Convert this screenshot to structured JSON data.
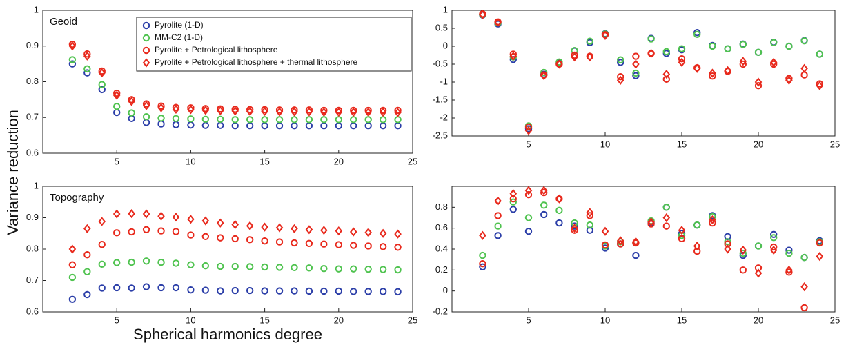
{
  "ylabel": "Variance reduction",
  "xlabel": "Spherical harmonics degree",
  "chart_data": [
    {
      "type": "scatter",
      "title": "Geoid",
      "legend": "top",
      "xlim": [
        0,
        25
      ],
      "ylim": [
        0.6,
        1
      ],
      "xticks": [
        5,
        10,
        15,
        20,
        25
      ],
      "yticks": [
        0.6,
        0.7,
        0.8,
        0.9,
        1
      ],
      "x": [
        2,
        3,
        4,
        5,
        6,
        7,
        8,
        9,
        10,
        11,
        12,
        13,
        14,
        15,
        16,
        17,
        18,
        19,
        20,
        21,
        22,
        23,
        24
      ],
      "series": [
        {
          "name": "Pyrolite (1-D)",
          "color": "#2b3ea8",
          "marker": "circle",
          "values": [
            0.85,
            0.825,
            0.778,
            0.714,
            0.697,
            0.686,
            0.682,
            0.68,
            0.679,
            0.678,
            0.678,
            0.677,
            0.677,
            0.677,
            0.677,
            0.677,
            0.677,
            0.677,
            0.677,
            0.677,
            0.677,
            0.677,
            0.677
          ]
        },
        {
          "name": "MM-C2 (1-D)",
          "color": "#4fc34f",
          "marker": "circle",
          "values": [
            0.862,
            0.836,
            0.792,
            0.731,
            0.713,
            0.702,
            0.698,
            0.697,
            0.696,
            0.695,
            0.695,
            0.694,
            0.694,
            0.694,
            0.694,
            0.694,
            0.694,
            0.694,
            0.694,
            0.694,
            0.694,
            0.694,
            0.694
          ]
        },
        {
          "name": "Pyrolite + Petrological lithosphere",
          "color": "#e8291c",
          "marker": "circle",
          "values": [
            0.905,
            0.878,
            0.83,
            0.768,
            0.75,
            0.738,
            0.732,
            0.728,
            0.727,
            0.725,
            0.724,
            0.723,
            0.722,
            0.722,
            0.721,
            0.721,
            0.721,
            0.72,
            0.72,
            0.72,
            0.72,
            0.72,
            0.72
          ]
        },
        {
          "name": "Pyrolite + Petrological lithosphere + thermal lithosphere",
          "color": "#e8291c",
          "marker": "diamond",
          "values": [
            0.9,
            0.872,
            0.825,
            0.762,
            0.745,
            0.733,
            0.727,
            0.723,
            0.722,
            0.72,
            0.719,
            0.718,
            0.717,
            0.717,
            0.716,
            0.716,
            0.716,
            0.715,
            0.715,
            0.715,
            0.715,
            0.715,
            0.714
          ]
        }
      ]
    },
    {
      "type": "scatter",
      "xlim": [
        0,
        25
      ],
      "ylim": [
        -2.5,
        1
      ],
      "xticks": [
        5,
        10,
        15,
        20,
        25
      ],
      "yticks": [
        -2.5,
        -2,
        -1.5,
        -1,
        -0.5,
        0,
        0.5,
        1
      ],
      "x": [
        2,
        3,
        4,
        5,
        6,
        7,
        8,
        9,
        10,
        11,
        12,
        13,
        14,
        15,
        16,
        17,
        18,
        19,
        20,
        21,
        22,
        23,
        24
      ],
      "series": [
        {
          "color": "#2b3ea8",
          "marker": "circle",
          "values": [
            0.87,
            0.62,
            -0.37,
            -2.3,
            -0.78,
            -0.47,
            -0.13,
            0.1,
            0.35,
            -0.45,
            -0.82,
            0.22,
            -0.2,
            -0.1,
            0.38,
            0.02,
            -0.07,
            0.06,
            -0.17,
            0.11,
            0.0,
            0.16,
            -0.22
          ]
        },
        {
          "color": "#4fc34f",
          "marker": "circle",
          "values": [
            0.88,
            0.65,
            -0.3,
            -2.22,
            -0.73,
            -0.44,
            -0.12,
            0.14,
            0.34,
            -0.38,
            -0.75,
            0.2,
            -0.15,
            -0.07,
            0.33,
            0.0,
            -0.07,
            0.05,
            -0.17,
            0.1,
            0.0,
            0.15,
            -0.22
          ]
        },
        {
          "color": "#e8291c",
          "marker": "circle",
          "values": [
            0.9,
            0.68,
            -0.22,
            -2.25,
            -0.8,
            -0.5,
            -0.25,
            -0.28,
            0.32,
            -0.85,
            -0.28,
            -0.2,
            -0.92,
            -0.35,
            -0.6,
            -0.83,
            -0.7,
            -0.5,
            -1.1,
            -0.5,
            -0.9,
            -0.8,
            -1.05
          ]
        },
        {
          "color": "#e8291c",
          "marker": "diamond",
          "values": [
            0.88,
            0.66,
            -0.28,
            -2.35,
            -0.82,
            -0.5,
            -0.3,
            -0.3,
            0.3,
            -0.95,
            -0.5,
            -0.2,
            -0.78,
            -0.45,
            -0.62,
            -0.75,
            -0.68,
            -0.42,
            -1.0,
            -0.45,
            -0.95,
            -0.62,
            -1.1
          ]
        }
      ]
    },
    {
      "type": "scatter",
      "title": "Topography",
      "xlim": [
        0,
        25
      ],
      "ylim": [
        0.6,
        1
      ],
      "xticks": [
        5,
        10,
        15,
        20,
        25
      ],
      "yticks": [
        0.6,
        0.7,
        0.8,
        0.9,
        1
      ],
      "x": [
        2,
        3,
        4,
        5,
        6,
        7,
        8,
        9,
        10,
        11,
        12,
        13,
        14,
        15,
        16,
        17,
        18,
        19,
        20,
        21,
        22,
        23,
        24
      ],
      "series": [
        {
          "color": "#2b3ea8",
          "marker": "circle",
          "values": [
            0.64,
            0.655,
            0.676,
            0.677,
            0.676,
            0.68,
            0.677,
            0.677,
            0.67,
            0.669,
            0.667,
            0.668,
            0.668,
            0.667,
            0.667,
            0.667,
            0.666,
            0.666,
            0.666,
            0.665,
            0.665,
            0.665,
            0.664
          ]
        },
        {
          "color": "#4fc34f",
          "marker": "circle",
          "values": [
            0.71,
            0.728,
            0.752,
            0.757,
            0.758,
            0.762,
            0.758,
            0.755,
            0.75,
            0.747,
            0.745,
            0.745,
            0.744,
            0.743,
            0.742,
            0.741,
            0.74,
            0.738,
            0.737,
            0.737,
            0.736,
            0.735,
            0.734
          ]
        },
        {
          "color": "#e8291c",
          "marker": "circle",
          "values": [
            0.75,
            0.782,
            0.815,
            0.852,
            0.855,
            0.862,
            0.858,
            0.856,
            0.845,
            0.84,
            0.836,
            0.833,
            0.83,
            0.826,
            0.823,
            0.82,
            0.818,
            0.816,
            0.814,
            0.812,
            0.81,
            0.808,
            0.806
          ]
        },
        {
          "color": "#e8291c",
          "marker": "diamond",
          "values": [
            0.8,
            0.865,
            0.888,
            0.912,
            0.913,
            0.912,
            0.905,
            0.902,
            0.895,
            0.89,
            0.883,
            0.878,
            0.874,
            0.87,
            0.868,
            0.865,
            0.862,
            0.86,
            0.858,
            0.855,
            0.853,
            0.85,
            0.848
          ]
        }
      ]
    },
    {
      "type": "scatter",
      "xlim": [
        0,
        25
      ],
      "ylim": [
        -0.2,
        1
      ],
      "xticks": [
        5,
        10,
        15,
        20,
        25
      ],
      "yticks": [
        -0.2,
        0,
        0.2,
        0.4,
        0.6,
        0.8
      ],
      "x": [
        2,
        3,
        4,
        5,
        6,
        7,
        8,
        9,
        10,
        11,
        12,
        13,
        14,
        15,
        16,
        17,
        18,
        19,
        20,
        21,
        22,
        23,
        24
      ],
      "series": [
        {
          "color": "#2b3ea8",
          "marker": "circle",
          "values": [
            0.23,
            0.53,
            0.78,
            0.57,
            0.73,
            0.65,
            0.62,
            0.58,
            0.41,
            0.45,
            0.34,
            0.65,
            0.8,
            0.55,
            0.63,
            0.72,
            0.52,
            0.34,
            0.43,
            0.54,
            0.39,
            0.32,
            0.48
          ]
        },
        {
          "color": "#4fc34f",
          "marker": "circle",
          "values": [
            0.34,
            0.62,
            0.85,
            0.7,
            0.82,
            0.77,
            0.65,
            0.63,
            0.43,
            0.47,
            0.46,
            0.67,
            0.8,
            0.53,
            0.63,
            0.71,
            0.47,
            0.36,
            0.43,
            0.51,
            0.36,
            0.32,
            0.47
          ]
        },
        {
          "color": "#e8291c",
          "marker": "circle",
          "values": [
            0.26,
            0.72,
            0.88,
            0.92,
            0.94,
            0.88,
            0.58,
            0.72,
            0.44,
            0.45,
            0.46,
            0.64,
            0.62,
            0.5,
            0.38,
            0.65,
            0.45,
            0.2,
            0.22,
            0.42,
            0.18,
            -0.16,
            0.46
          ]
        },
        {
          "color": "#e8291c",
          "marker": "diamond",
          "values": [
            0.53,
            0.86,
            0.93,
            0.96,
            0.96,
            0.88,
            0.6,
            0.75,
            0.57,
            0.48,
            0.47,
            0.66,
            0.7,
            0.58,
            0.43,
            0.68,
            0.4,
            0.39,
            0.17,
            0.39,
            0.2,
            0.04,
            0.33
          ]
        }
      ]
    }
  ]
}
